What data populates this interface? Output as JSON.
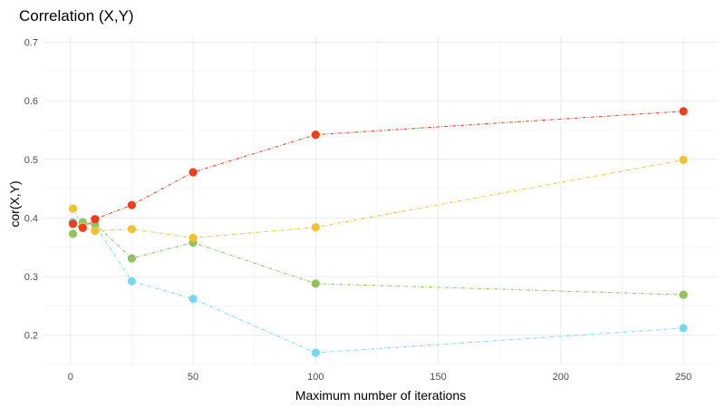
{
  "chart_data": {
    "type": "line",
    "title": "Correlation (X,Y)",
    "xlabel": "Maximum number of iterations",
    "ylabel": "cor(X,Y)",
    "x": [
      1,
      5,
      10,
      25,
      50,
      100,
      250
    ],
    "xlim": [
      -11,
      264
    ],
    "ylim": [
      0.15,
      0.71
    ],
    "xticks": [
      0,
      50,
      100,
      150,
      200,
      250
    ],
    "yticks": [
      0.2,
      0.3,
      0.4,
      0.5,
      0.6,
      0.7
    ],
    "xtick_labels": [
      "0",
      "50",
      "100",
      "150",
      "200",
      "250"
    ],
    "ytick_labels": [
      "0.2",
      "0.3",
      "0.4",
      "0.5",
      "0.6",
      "0.7"
    ],
    "grid": true,
    "legend": "none",
    "series": [
      {
        "color": "#78d6f5",
        "values": [
          0.393,
          0.393,
          0.388,
          0.292,
          0.262,
          0.17,
          0.212
        ]
      },
      {
        "color": "#8fc35b",
        "values": [
          0.373,
          0.392,
          0.39,
          0.331,
          0.358,
          0.288,
          0.269
        ]
      },
      {
        "color": "#f0c22f",
        "values": [
          0.416,
          0.385,
          0.378,
          0.381,
          0.366,
          0.384,
          0.499
        ]
      },
      {
        "color": "#ee3d1a",
        "values": [
          0.39,
          0.383,
          0.398,
          0.422,
          0.478,
          0.542,
          0.582
        ]
      }
    ]
  }
}
